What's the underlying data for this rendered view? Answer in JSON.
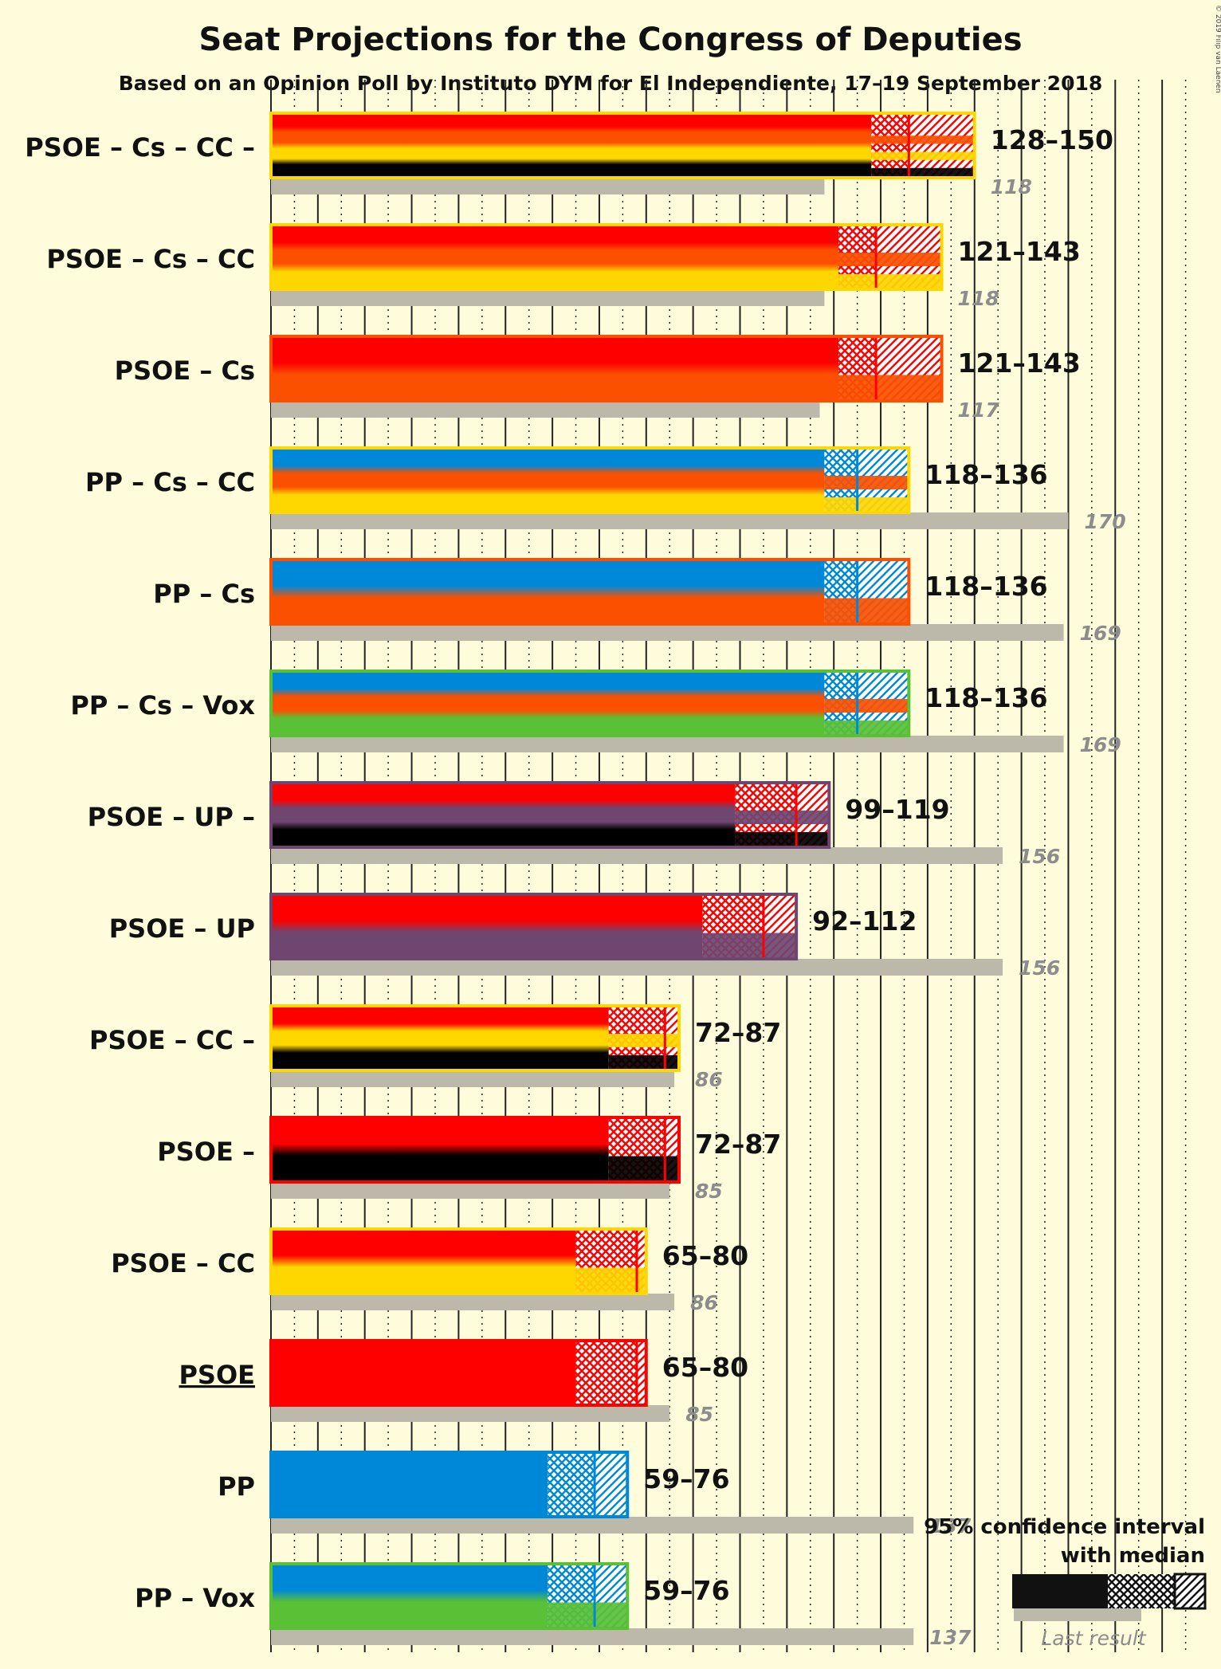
{
  "chart_data": {
    "type": "bar",
    "title": "Seat Projections for the Congress of Deputies",
    "subtitle": "Based on an Opinion Poll by Instituto DYM for El Independiente, 17–19 September 2018",
    "copyright": "© 2019 Filip van Laenen",
    "categories": [
      "PSOE – Cs – CC –",
      "PSOE – Cs – CC",
      "PSOE – Cs",
      "PP – Cs – CC",
      "PP – Cs",
      "PP – Cs – Vox",
      "PSOE – UP –",
      "PSOE – UP",
      "PSOE – CC –",
      "PSOE –",
      "PSOE – CC",
      "PSOE",
      "PP",
      "PP – Vox"
    ],
    "range_labels": [
      "128–150",
      "121–143",
      "121–143",
      "118–136",
      "118–136",
      "118–136",
      "99–119",
      "92–112",
      "72–87",
      "72–87",
      "65–80",
      "65–80",
      "59–76",
      "59–76"
    ],
    "ci_low": [
      128,
      121,
      121,
      118,
      118,
      118,
      99,
      92,
      72,
      72,
      65,
      65,
      59,
      59
    ],
    "ci_high": [
      150,
      143,
      143,
      136,
      136,
      136,
      119,
      112,
      87,
      87,
      80,
      80,
      76,
      76
    ],
    "median": [
      136,
      129,
      129,
      125,
      125,
      125,
      112,
      105,
      84,
      84,
      78,
      78,
      69,
      69
    ],
    "last_result": [
      118,
      118,
      117,
      170,
      169,
      169,
      156,
      156,
      86,
      85,
      86,
      85,
      137,
      137
    ],
    "parties": [
      [
        "PSOE",
        "Cs",
        "CC",
        "Other"
      ],
      [
        "PSOE",
        "Cs",
        "CC"
      ],
      [
        "PSOE",
        "Cs"
      ],
      [
        "PP",
        "Cs",
        "CC"
      ],
      [
        "PP",
        "Cs"
      ],
      [
        "PP",
        "Cs",
        "Vox"
      ],
      [
        "PSOE",
        "UP",
        "Other"
      ],
      [
        "PSOE",
        "UP"
      ],
      [
        "PSOE",
        "CC",
        "Other"
      ],
      [
        "PSOE",
        "Other"
      ],
      [
        "PSOE",
        "CC"
      ],
      [
        "PSOE"
      ],
      [
        "PP"
      ],
      [
        "PP",
        "Vox"
      ]
    ],
    "party_colors": {
      "PSOE": "#ff0000",
      "Cs": "#fa5000",
      "CC": "#ffd700",
      "PP": "#0088d8",
      "Vox": "#5ac035",
      "UP": "#6f4670",
      "Other": "#000000"
    },
    "underlined_category": "PSOE",
    "majority": 176,
    "xlim": [
      0,
      200
    ],
    "grid": true,
    "legend": {
      "position": "bottom-right",
      "title_line1": "95% confidence interval",
      "title_line2": "with median",
      "last_result_label": "Last result"
    }
  }
}
